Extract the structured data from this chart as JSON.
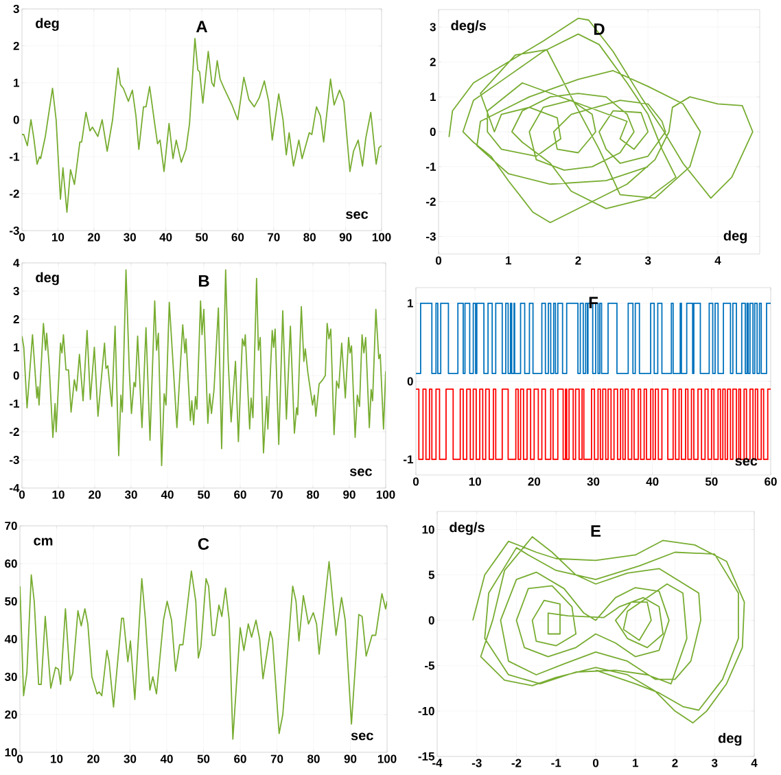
{
  "chart_data": [
    {
      "type": "line",
      "title": "A",
      "xlabel": "sec",
      "ylabel": "deg",
      "color": "#77ac30",
      "grid": true,
      "xlim": [
        0,
        100
      ],
      "ylim": [
        -3,
        3
      ],
      "xticks": [
        0,
        10,
        20,
        30,
        40,
        50,
        60,
        70,
        80,
        90,
        100
      ],
      "yticks": [
        -3,
        -2,
        -1,
        0,
        1,
        2,
        3
      ],
      "x": [
        0,
        0.5,
        1.5,
        2.5,
        3.3,
        4.2,
        4.9,
        5.2,
        6.5,
        8.5,
        9.5,
        10.7,
        11.4,
        12.5,
        13.5,
        14.6,
        16.1,
        16.6,
        17.8,
        18.9,
        19.6,
        21.1,
        22.3,
        23.7,
        25.2,
        26.7,
        27.4,
        28.2,
        29.6,
        30.7,
        31.7,
        32.5,
        33.8,
        34.5,
        35.5,
        36.9,
        37.7,
        38.4,
        39.5,
        40.9,
        42.0,
        42.9,
        44.3,
        45.6,
        46.6,
        48.1,
        48.9,
        49.4,
        50.3,
        51.8,
        52.8,
        53.4,
        54.3,
        55.1,
        56.2,
        58.4,
        60.0,
        61.7,
        63.1,
        64.6,
        66.0,
        67.4,
        68.6,
        69.6,
        71.4,
        72.6,
        73.5,
        74.3,
        75.5,
        77.0,
        77.9,
        79.9,
        80.6,
        81.9,
        83.0,
        83.9,
        85.8,
        86.8,
        88.3,
        89.5,
        91.2,
        92.2,
        93.5,
        94.7,
        95.6,
        97.0,
        98.5,
        99.3,
        100
      ],
      "values": [
        -0.4,
        -0.4,
        -0.7,
        0.0,
        -0.5,
        -1.2,
        -1.0,
        -1.05,
        -0.45,
        0.85,
        0.0,
        -2.15,
        -1.3,
        -2.5,
        -1.35,
        -1.75,
        -0.6,
        -0.6,
        0.2,
        -0.3,
        -0.2,
        -0.45,
        0.0,
        -0.85,
        0.0,
        1.4,
        0.95,
        0.85,
        0.5,
        0.8,
        0.1,
        -0.8,
        0.35,
        0.35,
        0.9,
        -0.1,
        -0.65,
        -0.55,
        -1.4,
        -0.1,
        -1.05,
        -0.55,
        -1.15,
        -0.8,
        -0.1,
        2.2,
        1.35,
        1.3,
        0.45,
        1.85,
        1.0,
        0.9,
        1.6,
        1.1,
        0.85,
        0.4,
        0.0,
        1.15,
        0.55,
        0.35,
        0.6,
        1.05,
        0.5,
        -0.55,
        0.7,
        0.0,
        -0.95,
        -0.35,
        -1.25,
        -0.55,
        -1.05,
        -0.35,
        -0.4,
        0.35,
        0.1,
        -0.6,
        1.1,
        0.4,
        0.8,
        0.5,
        -1.4,
        -0.85,
        -0.55,
        -1.25,
        -0.5,
        0.2,
        -1.2,
        -0.75,
        -0.7
      ]
    },
    {
      "type": "line",
      "title": "D",
      "xlabel": "deg",
      "ylabel": "deg/s",
      "color": "#77ac30",
      "grid": true,
      "xlim": [
        0,
        4.6
      ],
      "ylim": [
        -3.5,
        3.5
      ],
      "xticks": [
        0,
        1,
        2,
        3,
        4
      ],
      "yticks": [
        -3,
        -2,
        -1,
        0,
        1,
        2,
        3
      ],
      "x": [
        0.15,
        0.2,
        0.5,
        1.0,
        1.5,
        2.0,
        2.15,
        2.5,
        2.9,
        3.2,
        3.5,
        3.9,
        4.2,
        4.5,
        4.35,
        4.0,
        3.6,
        3.35,
        3.3,
        3.1,
        2.7,
        2.1,
        1.6,
        1.35,
        1.0,
        0.75,
        0.5,
        0.35,
        0.5,
        1.0,
        1.5,
        2.0,
        2.3,
        2.7,
        3.0,
        3.2,
        3.4,
        3.0,
        2.4,
        1.9,
        1.6,
        1.2,
        1.05,
        1.2,
        1.6,
        2.0,
        2.4,
        2.7,
        2.8,
        2.6,
        2.2,
        1.8,
        1.4,
        1.3,
        1.5,
        1.9,
        2.2,
        2.25,
        2.0,
        1.7,
        1.65,
        1.9,
        2.6,
        3.0,
        3.2,
        3.25,
        3.0,
        2.6,
        2.4,
        2.3,
        2.5,
        2.9,
        3.0,
        2.8,
        2.6,
        2.7,
        1.2,
        0.7,
        0.7,
        0.9,
        1.4,
        1.75,
        1.7,
        1.3,
        0.9,
        0.8,
        0.6,
        1.1,
        1.55,
        1.9,
        2.3,
        2.6,
        3.1,
        3.6,
        3.75,
        3.5,
        3.0,
        2.5,
        2.0,
        1.3,
        0.6,
        0.55,
        1.0,
        1.6,
        2.4,
        3.0
      ],
      "values": [
        -0.15,
        0.6,
        1.4,
        2.0,
        2.6,
        3.25,
        3.2,
        2.3,
        1.0,
        0.1,
        -0.9,
        -1.9,
        -1.3,
        0.0,
        0.75,
        0.8,
        1.0,
        0.7,
        0.0,
        -0.8,
        -1.5,
        -2.1,
        -2.6,
        -2.3,
        -1.4,
        -0.7,
        -0.3,
        0.0,
        0.9,
        1.6,
        2.3,
        2.8,
        2.5,
        1.4,
        0.5,
        -0.5,
        -1.3,
        -1.9,
        -2.2,
        -1.7,
        -0.9,
        -0.3,
        0.0,
        0.6,
        1.0,
        1.1,
        1.0,
        0.5,
        0.0,
        -0.6,
        -1.0,
        -1.1,
        -0.8,
        0.0,
        0.7,
        0.9,
        0.5,
        0.0,
        -0.6,
        -0.5,
        0.0,
        0.5,
        0.9,
        0.8,
        0.3,
        0.0,
        -0.7,
        -0.9,
        -0.5,
        0.0,
        0.6,
        0.55,
        0.0,
        -0.5,
        -0.2,
        0.3,
        1.4,
        0.6,
        0.0,
        -0.5,
        -0.7,
        -0.2,
        0.4,
        0.7,
        0.5,
        0.0,
        1.1,
        2.2,
        2.35,
        1.0,
        -0.5,
        -1.8,
        -1.9,
        -1.0,
        0.0,
        0.8,
        1.3,
        1.75,
        1.5,
        1.0,
        0.3,
        -0.4,
        -1.2,
        -1.5,
        -1.4,
        -1.0
      ]
    },
    {
      "type": "line",
      "title": "B",
      "xlabel": "sec",
      "ylabel": "deg",
      "color": "#77ac30",
      "grid": true,
      "xlim": [
        0,
        100
      ],
      "ylim": [
        -4,
        4
      ],
      "xticks": [
        0,
        10,
        20,
        30,
        40,
        50,
        60,
        70,
        80,
        90,
        100
      ],
      "yticks": [
        -4,
        -3,
        -2,
        -1,
        0,
        1,
        2,
        3,
        4
      ],
      "x": [
        0,
        0.5,
        1.4,
        2.9,
        4.1,
        4.4,
        4.7,
        5.9,
        6.5,
        6.8,
        7.5,
        8.5,
        9.1,
        9.4,
        10.6,
        11.0,
        11.4,
        12.1,
        12.8,
        13.5,
        14.4,
        15.0,
        15.8,
        16.8,
        17.9,
        18.8,
        19.9,
        20.9,
        21.9,
        22.7,
        23.1,
        23.6,
        24.7,
        25.6,
        26.6,
        27.2,
        27.6,
        28.6,
        29.5,
        30.1,
        30.8,
        31.2,
        31.8,
        33.0,
        34.1,
        35.2,
        36.5,
        37.0,
        37.5,
        38.4,
        39.1,
        39.6,
        40.5,
        41.5,
        42.6,
        43.1,
        44.2,
        44.8,
        45.1,
        46.3,
        46.7,
        47.2,
        47.7,
        48.1,
        49.1,
        49.5,
        50.0,
        51.1,
        51.6,
        52.1,
        52.8,
        54.0,
        54.9,
        56.0,
        56.7,
        57.5,
        58.7,
        59.5,
        60.6,
        61.1,
        61.4,
        62.6,
        63.0,
        63.5,
        64.5,
        65.0,
        65.5,
        66.4,
        67.3,
        67.6,
        68.8,
        69.2,
        69.6,
        70.6,
        71.7,
        72.7,
        73.8,
        74.9,
        75.5,
        75.8,
        76.8,
        77.5,
        77.9,
        78.6,
        79.9,
        80.4,
        80.8,
        81.7,
        82.7,
        83.4,
        83.9,
        84.4,
        84.9,
        85.8,
        86.5,
        87.1,
        87.9,
        88.9,
        89.8,
        90.2,
        90.6,
        91.6,
        92.2,
        92.8,
        93.5,
        94.0,
        94.5,
        95.5,
        96.0,
        96.4,
        97.3,
        98.1,
        98.5,
        99.4,
        100
      ],
      "values": [
        1.4,
        1.0,
        -1.15,
        1.45,
        -0.8,
        -0.4,
        -1.05,
        1.85,
        0.9,
        1.5,
        0.3,
        -2.2,
        -1.0,
        -2.0,
        1.15,
        0.8,
        1.45,
        0.2,
        0.2,
        -1.3,
        -0.15,
        -0.55,
        0.75,
        -0.9,
        1.6,
        -0.85,
        1.0,
        -1.45,
        0.0,
        1.15,
        0.25,
        0.35,
        -1.1,
        1.75,
        -2.85,
        -0.7,
        -1.3,
        3.75,
        0.2,
        -1.35,
        -0.25,
        -0.4,
        1.4,
        -1.85,
        1.7,
        -2.3,
        2.65,
        0.9,
        1.5,
        -3.2,
        -0.65,
        -1.05,
        2.6,
        0.5,
        -1.85,
        -0.65,
        1.8,
        0.8,
        1.3,
        -1.6,
        -0.9,
        -1.75,
        -0.75,
        -1.2,
        2.65,
        1.45,
        2.35,
        -1.7,
        -0.65,
        -1.35,
        -0.5,
        2.4,
        -2.6,
        3.75,
        0.5,
        -1.65,
        0.5,
        -2.35,
        1.3,
        1.05,
        1.45,
        -1.9,
        -0.8,
        -1.5,
        3.45,
        0.9,
        1.35,
        -2.75,
        -0.75,
        -1.9,
        1.6,
        1.0,
        1.65,
        -2.45,
        2.3,
        -1.55,
        1.75,
        -2.05,
        -1.15,
        -1.4,
        2.45,
        0.5,
        0.95,
        0.1,
        -1.05,
        -0.7,
        -1.45,
        -0.3,
        -0.15,
        0.0,
        1.85,
        1.3,
        1.65,
        -2.1,
        -0.2,
        -0.45,
        1.15,
        -0.8,
        1.35,
        0.8,
        1.05,
        -2.2,
        -0.7,
        -1.1,
        1.45,
        0.8,
        1.35,
        -1.85,
        -0.5,
        -0.9,
        2.35,
        0.6,
        0.75,
        -1.9,
        0.15
      ]
    },
    {
      "type": "step",
      "title": "F",
      "xlabel": "sec",
      "grid": true,
      "xlim": [
        0,
        60
      ],
      "ylim": [
        -1.2,
        1.2
      ],
      "xticks": [
        0,
        10,
        20,
        30,
        40,
        50,
        60
      ],
      "yticks": [
        -1,
        0,
        1
      ],
      "series": [
        {
          "color": "#0072bd",
          "x": [
            0,
            0.8,
            2.7,
            3.4,
            3.7,
            4.2,
            5.5,
            7.1,
            8.0,
            8.3,
            9.1,
            9.7,
            10.1,
            10.3,
            11.5,
            12.2,
            12.9,
            13.5,
            14.6,
            15.2,
            15.6,
            16.0,
            16.2,
            16.6,
            16.7,
            17.7,
            18.4,
            19.2,
            19.8,
            21.3,
            21.9,
            22.4,
            22.8,
            23.3,
            23.6,
            24.0,
            24.8,
            25.5,
            27.4,
            27.8,
            28.3,
            28.7,
            29.0,
            29.1,
            29.9,
            30.4,
            30.8,
            31.1,
            31.4,
            32.5,
            34.0,
            35.9,
            36.7,
            37.1,
            37.8,
            39.7,
            40.3,
            40.9,
            41.6,
            43.2,
            43.5,
            44.7,
            44.9,
            45.8,
            46.8,
            47.0,
            48.1,
            49.6,
            50.2,
            50.6,
            51.1,
            52.0,
            53.2,
            53.6,
            54.2,
            55.1,
            55.7,
            56.0,
            56.2,
            56.5,
            57.0,
            57.3,
            57.7,
            58.1,
            58.4,
            59.3,
            60
          ],
          "values": [
            0.1,
            1,
            0.1,
            1,
            0.1,
            1,
            0.1,
            1,
            0.1,
            1,
            0.1,
            1,
            0.1,
            1,
            0.1,
            1,
            0.1,
            1,
            0.1,
            1,
            0.1,
            1,
            0.1,
            1,
            0.1,
            1,
            0.1,
            1,
            0.1,
            1,
            0.1,
            1,
            0.1,
            1,
            0.1,
            1,
            0.1,
            1,
            0.1,
            1,
            0.1,
            1,
            0.1,
            1,
            0.1,
            1,
            0.1,
            1,
            0.1,
            1,
            0.1,
            1,
            0.1,
            1,
            0.1,
            1,
            0.1,
            1,
            0.1,
            1,
            0.1,
            1,
            0.1,
            1,
            0.1,
            1,
            0.1,
            1,
            0.1,
            1,
            0.1,
            1,
            0.1,
            1,
            0.1,
            1,
            0.1,
            1,
            0.1,
            1,
            0.1,
            1,
            0.1,
            1,
            0.1,
            1,
            1
          ]
        },
        {
          "color": "#ff0000",
          "x": [
            0,
            0.5,
            1.2,
            1.7,
            2.3,
            2.7,
            3.4,
            4.0,
            5.1,
            6.3,
            7.5,
            8.0,
            8.6,
            9.2,
            9.7,
            10.2,
            10.8,
            11.3,
            11.8,
            12.4,
            13.1,
            13.5,
            14.6,
            15.6,
            16.9,
            17.3,
            17.7,
            18.2,
            18.8,
            19.4,
            20.0,
            20.7,
            21.3,
            21.9,
            22.8,
            23.2,
            24.0,
            24.9,
            25.3,
            25.5,
            25.9,
            26.6,
            27.0,
            27.6,
            28.1,
            28.4,
            29.7,
            30.2,
            30.8,
            31.2,
            31.6,
            32.1,
            32.5,
            33.0,
            33.5,
            34.1,
            34.6,
            35.0,
            35.4,
            35.9,
            36.5,
            36.9,
            37.6,
            38.0,
            38.6,
            39.0,
            39.7,
            40.1,
            40.5,
            41.0,
            41.6,
            42.6,
            43.5,
            43.9,
            44.5,
            44.9,
            45.6,
            46.0,
            46.6,
            47.0,
            47.7,
            48.3,
            48.9,
            49.4,
            50.0,
            50.4,
            51.1,
            51.5,
            51.9,
            52.3,
            52.7,
            53.2,
            53.6,
            54.2,
            54.6,
            54.9,
            55.5,
            55.9,
            56.5,
            57.0,
            57.4,
            57.8,
            58.4,
            58.8,
            59.5,
            60
          ],
          "values": [
            -0.1,
            -1,
            -0.1,
            -1,
            -0.1,
            -1,
            -0.1,
            -1,
            -0.1,
            -1,
            -0.1,
            -1,
            -0.1,
            -1,
            -0.1,
            -1,
            -0.1,
            -1,
            -0.1,
            -1,
            -0.1,
            -1,
            -0.1,
            -1,
            -0.1,
            -1,
            -0.1,
            -1,
            -0.1,
            -1,
            -0.1,
            -1,
            -0.1,
            -1,
            -0.1,
            -1,
            -0.1,
            -1,
            -0.1,
            -1,
            -0.1,
            -1,
            -0.1,
            -1,
            -0.1,
            -1,
            -0.1,
            -1,
            -0.1,
            -1,
            -0.1,
            -1,
            -0.1,
            -1,
            -0.1,
            -1,
            -0.1,
            -1,
            -0.1,
            -1,
            -0.1,
            -1,
            -0.1,
            -1,
            -0.1,
            -1,
            -0.1,
            -1,
            -0.1,
            -1,
            -0.1,
            -1,
            -0.1,
            -1,
            -0.1,
            -1,
            -0.1,
            -1,
            -0.1,
            -1,
            -0.1,
            -1,
            -0.1,
            -1,
            -0.1,
            -1,
            -0.1,
            -1,
            -0.1,
            -1,
            -0.1,
            -1,
            -0.1,
            -1,
            -0.1,
            -1,
            -0.1,
            -1,
            -0.1,
            -1,
            -0.1,
            -1,
            -0.1,
            -1,
            -0.1,
            -0.1
          ]
        }
      ]
    },
    {
      "type": "line",
      "title": "C",
      "xlabel": "sec",
      "ylabel": "cm",
      "color": "#77ac30",
      "grid": true,
      "xlim": [
        0,
        100
      ],
      "ylim": [
        10,
        70
      ],
      "xticks": [
        0,
        10,
        20,
        30,
        40,
        50,
        60,
        70,
        80,
        90,
        100
      ],
      "yticks": [
        10,
        20,
        30,
        40,
        50,
        60,
        70
      ],
      "x": [
        0,
        1.0,
        1.9,
        3.1,
        3.9,
        5.1,
        5.8,
        6.9,
        8.4,
        9.7,
        10.5,
        11.1,
        12.4,
        13.7,
        14.4,
        15.8,
        16.7,
        17.7,
        18.5,
        19.6,
        21.0,
        21.6,
        22.3,
        23.7,
        24.3,
        25.5,
        27.7,
        28.2,
        29.4,
        30.1,
        31.3,
        33.2,
        34.2,
        35.4,
        36.2,
        37.2,
        39.1,
        40.1,
        41.3,
        42.4,
        43.5,
        44.4,
        46.7,
        47.9,
        48.6,
        49.3,
        50.7,
        51.4,
        52.4,
        53.1,
        54.2,
        55.0,
        56.0,
        57.0,
        58.0,
        60.0,
        61.0,
        62.2,
        63.1,
        64.3,
        65.3,
        66.2,
        68.2,
        68.8,
        70.6,
        71.6,
        74.3,
        75.2,
        76.0,
        77.2,
        78.6,
        79.9,
        80.8,
        81.5,
        84.2,
        86.1,
        87.6,
        88.6,
        90.3,
        92.3,
        93.2,
        94.3,
        95.9,
        96.9,
        98.6,
        99.6,
        100
      ],
      "values": [
        54,
        25,
        31,
        57,
        50,
        28,
        28,
        46,
        27,
        32.5,
        32,
        28,
        48,
        29,
        31,
        47.5,
        43.5,
        48,
        44,
        30,
        25.5,
        26,
        25,
        37,
        34,
        22,
        45.5,
        45.5,
        34,
        39.5,
        24,
        56,
        45,
        26.5,
        30,
        25.5,
        45,
        50,
        45,
        31.5,
        38.5,
        38.5,
        58,
        50,
        35,
        38,
        56,
        54,
        41,
        41,
        49,
        46,
        53.5,
        45,
        13.5,
        43,
        37,
        44,
        40.5,
        45,
        40,
        29.5,
        42,
        40,
        15,
        20,
        54,
        50,
        39.5,
        51.5,
        44,
        47,
        44,
        36,
        60.5,
        41,
        51,
        45,
        17.5,
        46.5,
        46,
        35.5,
        41,
        41,
        52,
        48,
        50
      ]
    },
    {
      "type": "line",
      "title": "E",
      "xlabel": "deg",
      "ylabel": "deg/s",
      "color": "#77ac30",
      "grid": true,
      "xlim": [
        -4,
        4
      ],
      "ylim": [
        -15,
        12
      ],
      "xticks": [
        -4,
        -3,
        -2,
        -1,
        0,
        1,
        2,
        3,
        4
      ],
      "yticks": [
        -15,
        -10,
        -5,
        0,
        5,
        10
      ],
      "x": [
        -3.1,
        -2.8,
        -2.2,
        -1.9,
        -1.5,
        -1.0,
        0,
        1.0,
        1.7,
        2.5,
        3.3,
        3.75,
        3.7,
        3.3,
        2.8,
        2.45,
        2.0,
        1.5,
        0.8,
        0,
        -1.0,
        -1.6,
        -2.3,
        -2.9,
        -2.6,
        -2.3,
        -1.6,
        -1.1,
        -0.5,
        0,
        0.8,
        1.6,
        2.6,
        2.65,
        2.4,
        2.0,
        1.5,
        0.8,
        0,
        -0.8,
        -1.5,
        -2.2,
        -2.4,
        -2.0,
        -1.5,
        -0.8,
        -0.3,
        0,
        0.5,
        1.0,
        1.6,
        1.85,
        1.6,
        1.0,
        0.5,
        0,
        -0.5,
        -1.2,
        -1.8,
        -2.0,
        -1.7,
        -1.1,
        -0.6,
        -0.5,
        -1.0,
        -1.5,
        -1.6,
        -1.3,
        -0.9,
        -0.9,
        -1.2,
        -1.2,
        -0.7,
        0.2,
        0.6,
        1.2,
        1.6,
        1.7,
        1.3,
        0.8,
        0.5,
        0.9,
        1.3,
        1.4,
        1.1,
        0.7,
        0.8,
        1.8,
        2.2,
        2.3,
        1.9,
        1.3,
        0.5,
        -0.5,
        -1.4,
        -2.2,
        -2.8,
        -2.7,
        -2.0,
        -1.7,
        -1.0,
        0,
        1.1,
        2.0,
        3.0,
        3.6,
        3.6,
        3.2,
        2.6,
        2.2,
        1.6,
        1.0,
        0
      ],
      "values": [
        0,
        5,
        8.7,
        8.2,
        7.5,
        6.8,
        6.6,
        7.2,
        8.8,
        8.3,
        6.5,
        2,
        -3,
        -7,
        -10,
        -11.3,
        -10,
        -7.8,
        -6,
        -5.2,
        -6.3,
        -7.2,
        -6.6,
        -4,
        0,
        5.5,
        9.2,
        7.5,
        5,
        4,
        5.2,
        5.7,
        3,
        0,
        -4.5,
        -6.5,
        -6.5,
        -4.5,
        -3.5,
        -4.8,
        -6,
        -4.5,
        0,
        4.5,
        5.3,
        3.5,
        0.8,
        0,
        2.5,
        3.6,
        3.2,
        0,
        -3.3,
        -4,
        -2.5,
        -1.5,
        -3,
        -4,
        -3,
        0,
        3.5,
        3.8,
        1.5,
        -1.5,
        -2.8,
        -2.3,
        0,
        2.2,
        1.8,
        -1.5,
        -1.5,
        0.8,
        0.5,
        0.3,
        1.5,
        2.5,
        1.5,
        -1.5,
        -3,
        -2,
        0,
        2,
        2,
        0,
        -2.2,
        -1,
        1,
        4,
        3,
        -2,
        -7,
        -6,
        -5.5,
        -5.7,
        -7,
        -6,
        -2,
        3,
        8.0,
        7.2,
        5.5,
        4.5,
        6,
        7.5,
        7.3,
        3,
        -2,
        -6.5,
        -9.9,
        -9.5,
        -8,
        -7,
        -5.5
      ]
    }
  ]
}
